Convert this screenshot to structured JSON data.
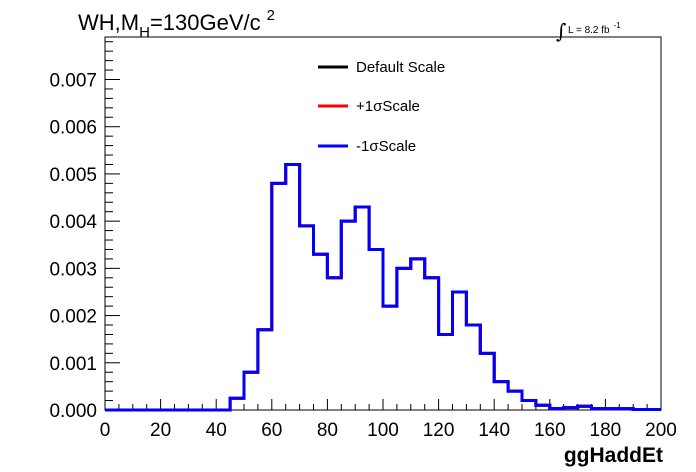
{
  "chart_data": {
    "type": "line",
    "title": {
      "main": "WH,M",
      "subscript": "H",
      "rest": "=130GeV/c",
      "superscript": "2"
    },
    "luminosity": {
      "integral_symbol": "∫",
      "text": "L = 8.2 fb",
      "superscript": "-1"
    },
    "xlabel": "ggHaddEt",
    "ylabel": "",
    "xlim": [
      0,
      200
    ],
    "ylim": [
      0,
      0.0079
    ],
    "x_ticks": [
      "0",
      "20",
      "40",
      "60",
      "80",
      "100",
      "120",
      "140",
      "160",
      "180",
      "200"
    ],
    "y_ticks": [
      "0.000",
      "0.001",
      "0.002",
      "0.003",
      "0.004",
      "0.005",
      "0.006",
      "0.007"
    ],
    "grid": false,
    "legend_position": "top-center",
    "bin_width": 5,
    "bin_edges_start": 0,
    "series": [
      {
        "name": "Default Scale",
        "color": "#000000",
        "values": [
          0,
          0,
          0,
          0,
          0,
          0,
          0,
          0,
          0,
          0.00025,
          0.0008,
          0.0017,
          0.0048,
          0.0052,
          0.0039,
          0.0033,
          0.0028,
          0.004,
          0.0043,
          0.0034,
          0.0022,
          0.003,
          0.0032,
          0.0028,
          0.0016,
          0.0025,
          0.0018,
          0.0012,
          0.0006,
          0.0004,
          0.0002,
          0.0001,
          3e-05,
          5e-05,
          8e-05,
          3e-05,
          3e-05,
          3e-05,
          1e-05,
          1e-05
        ]
      },
      {
        "name": "+1σScale",
        "color": "#ff0000",
        "values": [
          0,
          0,
          0,
          0,
          0,
          0,
          0,
          0,
          0,
          0.00025,
          0.0008,
          0.0017,
          0.0048,
          0.0052,
          0.0039,
          0.0033,
          0.0028,
          0.004,
          0.0043,
          0.0034,
          0.0022,
          0.003,
          0.0032,
          0.0028,
          0.0016,
          0.0025,
          0.0018,
          0.0012,
          0.0006,
          0.0004,
          0.0002,
          0.0001,
          3e-05,
          5e-05,
          8e-05,
          3e-05,
          3e-05,
          3e-05,
          1e-05,
          1e-05
        ]
      },
      {
        "name": "-1σScale",
        "color": "#0000ff",
        "values": [
          0,
          0,
          0,
          0,
          0,
          0,
          0,
          0,
          0,
          0.00025,
          0.0008,
          0.0017,
          0.0048,
          0.0052,
          0.0039,
          0.0033,
          0.0028,
          0.004,
          0.0043,
          0.0034,
          0.0022,
          0.003,
          0.0032,
          0.0028,
          0.0016,
          0.0025,
          0.0018,
          0.0012,
          0.0006,
          0.0004,
          0.0002,
          0.0001,
          3e-05,
          5e-05,
          8e-05,
          3e-05,
          3e-05,
          3e-05,
          1e-05,
          1e-05
        ]
      }
    ]
  }
}
